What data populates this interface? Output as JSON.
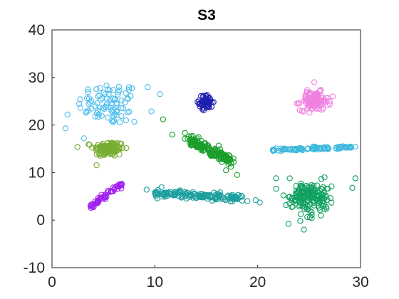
{
  "chart_data": {
    "type": "scatter",
    "title": "S3",
    "xlabel": "",
    "ylabel": "",
    "xlim": [
      0,
      30
    ],
    "ylim": [
      -10,
      40
    ],
    "x_ticks": [
      "0",
      "10",
      "20",
      "30"
    ],
    "y_ticks": [
      "-10",
      "0",
      "10",
      "20",
      "30",
      "40"
    ],
    "x_tick_values": [
      0,
      10,
      20,
      30
    ],
    "y_tick_values": [
      -10,
      0,
      10,
      20,
      30,
      40
    ],
    "grid": false,
    "legend": "none",
    "clusters": [
      {
        "color": "#4dbeee",
        "center": [
          5.5,
          24.5
        ],
        "spread": [
          2.0,
          3.0
        ],
        "count": 85,
        "shape": "blob"
      },
      {
        "color": "#77ac30",
        "center": [
          5.5,
          15.0
        ],
        "spread": [
          1.0,
          1.1
        ],
        "count": 120,
        "shape": "blob"
      },
      {
        "color": "#a020f0",
        "start": [
          3.7,
          2.8
        ],
        "end": [
          6.8,
          7.5
        ],
        "width": 0.25,
        "count": 60,
        "shape": "line"
      },
      {
        "color": "#1f1fb0",
        "center": [
          15.0,
          24.8
        ],
        "spread": [
          0.45,
          1.0
        ],
        "count": 60,
        "shape": "blob"
      },
      {
        "color": "#1a9e2a",
        "start": [
          13.0,
          17.2
        ],
        "end": [
          17.5,
          12.3
        ],
        "width": 0.6,
        "count": 150,
        "shape": "line"
      },
      {
        "color": "#1e9e9e",
        "start": [
          10.0,
          5.8
        ],
        "end": [
          18.5,
          4.5
        ],
        "width": 0.4,
        "count": 150,
        "shape": "line"
      },
      {
        "color": "#f080e0",
        "center": [
          25.5,
          25.0
        ],
        "spread": [
          0.9,
          1.3
        ],
        "count": 110,
        "shape": "blob"
      },
      {
        "color": "#3cb8dc",
        "start": [
          21.5,
          14.8
        ],
        "end": [
          29.5,
          15.4
        ],
        "width": 0.15,
        "count": 90,
        "shape": "line"
      },
      {
        "color": "#10a060",
        "center": [
          25.0,
          5.0
        ],
        "spread": [
          1.4,
          2.2
        ],
        "count": 170,
        "shape": "blob"
      }
    ],
    "outliers": [
      {
        "color": "#4dbeee",
        "points": [
          [
            1.3,
            19.3
          ],
          [
            1.5,
            22.2
          ],
          [
            3.1,
            17.2
          ],
          [
            9.3,
            28.0
          ],
          [
            10.5,
            26.5
          ],
          [
            6.3,
            22.8
          ],
          [
            7.2,
            21.0
          ],
          [
            8.0,
            20.7
          ]
        ]
      },
      {
        "color": "#1a9e2a",
        "points": [
          [
            10.8,
            21.2
          ],
          [
            11.7,
            18.0
          ],
          [
            18.0,
            9.5
          ],
          [
            16.5,
            12.2
          ]
        ]
      },
      {
        "color": "#1e9e9e",
        "points": [
          [
            9.2,
            6.4
          ],
          [
            19.0,
            4.0
          ],
          [
            19.8,
            4.2
          ],
          [
            20.2,
            3.7
          ],
          [
            17.6,
            4.5
          ]
        ]
      },
      {
        "color": "#10a060",
        "points": [
          [
            21.8,
            8.8
          ],
          [
            21.8,
            6.6
          ],
          [
            22.5,
            5.2
          ],
          [
            29.5,
            8.8
          ],
          [
            29.2,
            6.8
          ],
          [
            23.0,
            -0.8
          ],
          [
            24.5,
            -2.0
          ],
          [
            26.5,
            9.0
          ]
        ]
      },
      {
        "color": "#f080e0",
        "points": [
          [
            27.3,
            26.0
          ],
          [
            23.8,
            24.5
          ],
          [
            25.5,
            29.0
          ]
        ]
      },
      {
        "color": "#3cb8dc",
        "points": [
          [
            30.0,
            15.5
          ],
          [
            22.0,
            14.6
          ]
        ]
      }
    ]
  }
}
